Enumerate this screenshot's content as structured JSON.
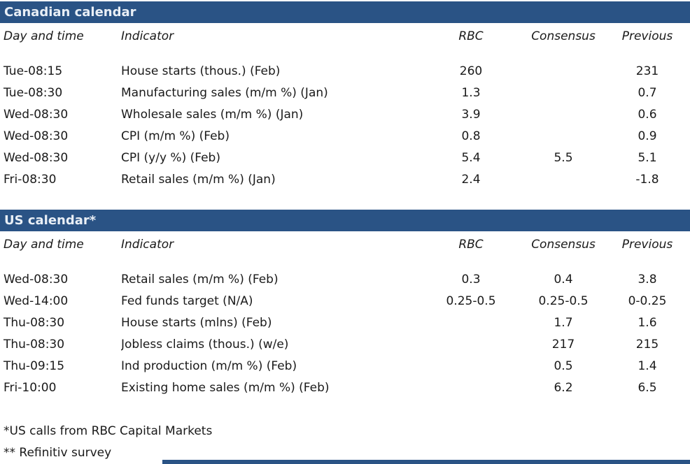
{
  "colors": {
    "navy": "#2A5385",
    "title_text": "#E9EFF6"
  },
  "columns": {
    "day": "Day and time",
    "indicator": "Indicator",
    "rbc": "RBC",
    "consensus": "Consensus",
    "previous": "Previous"
  },
  "sections": [
    {
      "title": "Canadian calendar",
      "rows": [
        {
          "day": "Tue-08:15",
          "indicator": "House starts (thous.) (Feb)",
          "rbc": "260",
          "consensus": "",
          "previous": "231"
        },
        {
          "day": "Tue-08:30",
          "indicator": "Manufacturing sales (m/m %) (Jan)",
          "rbc": "1.3",
          "consensus": "",
          "previous": "0.7"
        },
        {
          "day": "Wed-08:30",
          "indicator": "Wholesale sales (m/m %) (Jan)",
          "rbc": "3.9",
          "consensus": "",
          "previous": "0.6"
        },
        {
          "day": "Wed-08:30",
          "indicator": "CPI (m/m %) (Feb)",
          "rbc": "0.8",
          "consensus": "",
          "previous": "0.9"
        },
        {
          "day": "Wed-08:30",
          "indicator": "CPI (y/y %) (Feb)",
          "rbc": "5.4",
          "consensus": "5.5",
          "previous": "5.1"
        },
        {
          "day": "Fri-08:30",
          "indicator": "Retail sales (m/m %) (Jan)",
          "rbc": "2.4",
          "consensus": "",
          "previous": "-1.8"
        }
      ]
    },
    {
      "title": "US calendar*",
      "rows": [
        {
          "day": "Wed-08:30",
          "indicator": "Retail sales (m/m %) (Feb)",
          "rbc": "0.3",
          "consensus": "0.4",
          "previous": "3.8"
        },
        {
          "day": "Wed-14:00",
          "indicator": "Fed funds target (N/A)",
          "rbc": "0.25-0.5",
          "consensus": "0.25-0.5",
          "previous": "0-0.25"
        },
        {
          "day": "Thu-08:30",
          "indicator": "House starts (mlns) (Feb)",
          "rbc": "",
          "consensus": "1.7",
          "previous": "1.6"
        },
        {
          "day": "Thu-08:30",
          "indicator": "Jobless claims (thous.) (w/e)",
          "rbc": "",
          "consensus": "217",
          "previous": "215"
        },
        {
          "day": "Thu-09:15",
          "indicator": "Ind production (m/m %) (Feb)",
          "rbc": "",
          "consensus": "0.5",
          "previous": "1.4"
        },
        {
          "day": "Fri-10:00",
          "indicator": "Existing home sales (m/m %) (Feb)",
          "rbc": "",
          "consensus": "6.2",
          "previous": "6.5"
        }
      ]
    }
  ],
  "footnotes": [
    "*US calls from RBC Capital Markets",
    "** Refinitiv survey"
  ]
}
